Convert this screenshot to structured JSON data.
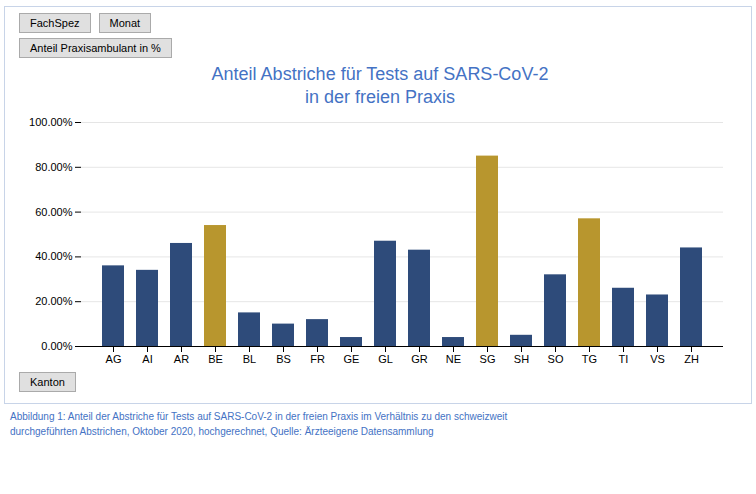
{
  "chart_data": {
    "type": "bar",
    "title": "Anteil Abstriche für Tests auf SARS-CoV-2\nin der freien Praxis",
    "categories": [
      "AG",
      "AI",
      "AR",
      "BE",
      "BL",
      "BS",
      "FR",
      "GE",
      "GL",
      "GR",
      "NE",
      "SG",
      "SH",
      "SO",
      "TG",
      "TI",
      "VS",
      "ZH"
    ],
    "values": [
      0.36,
      0.34,
      0.46,
      0.54,
      0.15,
      0.1,
      0.12,
      0.04,
      0.47,
      0.43,
      0.04,
      0.85,
      0.05,
      0.32,
      0.57,
      0.26,
      0.23,
      0.44
    ],
    "colors": [
      "#2E4B7A",
      "#2E4B7A",
      "#2E4B7A",
      "#B8962E",
      "#2E4B7A",
      "#2E4B7A",
      "#2E4B7A",
      "#2E4B7A",
      "#2E4B7A",
      "#2E4B7A",
      "#2E4B7A",
      "#B8962E",
      "#2E4B7A",
      "#2E4B7A",
      "#B8962E",
      "#2E4B7A",
      "#2E4B7A",
      "#2E4B7A"
    ],
    "ylim": [
      0,
      1.0
    ],
    "yticks": [
      {
        "value": 0.0,
        "label": "0.00%"
      },
      {
        "value": 0.2,
        "label": "20.00%"
      },
      {
        "value": 0.4,
        "label": "40.00%"
      },
      {
        "value": 0.6,
        "label": "60.00%"
      },
      {
        "value": 0.8,
        "label": "80.00%"
      },
      {
        "value": 1.0,
        "label": "100.00%"
      }
    ],
    "grid": true,
    "annotations": [
      "FachSpez",
      "Monat",
      "Anteil Praxisambulant in %",
      "Kanton"
    ],
    "caption": "Abbildung 1: Anteil der Abstriche für Tests auf SARS-CoV-2 in der freien Praxis im Verhältnis zu den schweizweit\ndurchgeführten Abstrichen, Oktober 2020, hochgerechnet, Quelle: Ärzteeigene Datensammlung"
  }
}
